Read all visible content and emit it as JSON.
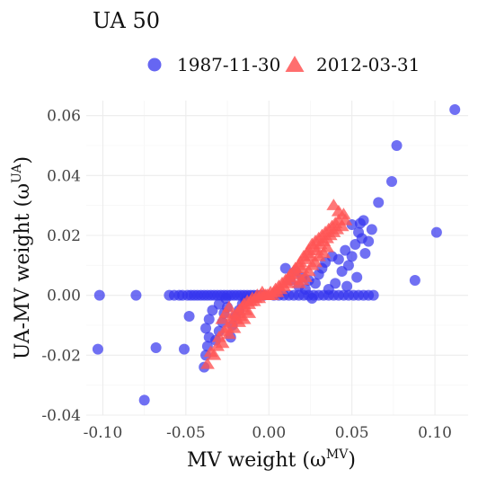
{
  "chart_data": {
    "type": "scatter",
    "title": "UA 50",
    "xlabel": "MV weight (ω",
    "xlabel_sup": "MV",
    "xlabel_close": ")",
    "ylabel": "UA-MV weight (ω",
    "ylabel_sup": "UA",
    "ylabel_close": ")",
    "xlim": [
      -0.11,
      0.12
    ],
    "ylim": [
      -0.04,
      0.065
    ],
    "x_ticks": [
      -0.1,
      -0.05,
      0.0,
      0.05,
      0.1
    ],
    "x_tick_labels": [
      "-0.10",
      "-0.05",
      "0.00",
      "0.05",
      "0.10"
    ],
    "y_ticks": [
      -0.04,
      -0.02,
      0.0,
      0.02,
      0.04,
      0.06
    ],
    "y_tick_labels": [
      "-0.04",
      "-0.02",
      "0.00",
      "0.02",
      "0.04",
      "0.06"
    ],
    "grid": true,
    "legend_position": "top",
    "series": [
      {
        "name": "1987-11-30",
        "marker": "circle",
        "color": "#3333ee",
        "points": [
          [
            -0.102,
            0.0
          ],
          [
            -0.08,
            0.0
          ],
          [
            -0.06,
            0.0
          ],
          [
            -0.057,
            0.0
          ],
          [
            -0.054,
            0.0
          ],
          [
            -0.052,
            0.0
          ],
          [
            -0.049,
            0.0
          ],
          [
            -0.047,
            0.0
          ],
          [
            -0.045,
            0.0
          ],
          [
            -0.043,
            0.0
          ],
          [
            -0.041,
            0.0
          ],
          [
            -0.039,
            0.0
          ],
          [
            -0.037,
            0.0
          ],
          [
            -0.035,
            0.0
          ],
          [
            -0.033,
            0.0
          ],
          [
            -0.031,
            0.0
          ],
          [
            -0.029,
            0.0
          ],
          [
            -0.027,
            0.0
          ],
          [
            -0.025,
            0.0
          ],
          [
            -0.023,
            0.0
          ],
          [
            -0.021,
            0.0
          ],
          [
            -0.019,
            0.0
          ],
          [
            -0.017,
            0.0
          ],
          [
            -0.015,
            0.0
          ],
          [
            -0.013,
            0.0
          ],
          [
            -0.011,
            0.0
          ],
          [
            -0.009,
            0.0
          ],
          [
            -0.007,
            0.0
          ],
          [
            -0.005,
            0.0
          ],
          [
            -0.003,
            0.0
          ],
          [
            0.003,
            0.0
          ],
          [
            0.006,
            0.0
          ],
          [
            0.009,
            0.0
          ],
          [
            0.012,
            0.0
          ],
          [
            0.015,
            0.0
          ],
          [
            0.018,
            0.0
          ],
          [
            0.021,
            0.0
          ],
          [
            0.024,
            0.0
          ],
          [
            0.027,
            0.0
          ],
          [
            0.03,
            0.0
          ],
          [
            0.033,
            0.0
          ],
          [
            0.036,
            0.0
          ],
          [
            0.039,
            0.0
          ],
          [
            0.042,
            0.0
          ],
          [
            0.045,
            0.0
          ],
          [
            0.048,
            0.0
          ],
          [
            0.051,
            0.0
          ],
          [
            0.054,
            0.0
          ],
          [
            0.057,
            0.0
          ],
          [
            0.06,
            0.0
          ],
          [
            0.063,
            0.0
          ],
          [
            -0.103,
            -0.018
          ],
          [
            -0.075,
            -0.035
          ],
          [
            -0.068,
            -0.0175
          ],
          [
            -0.051,
            -0.018
          ],
          [
            -0.048,
            -0.007
          ],
          [
            -0.039,
            -0.024
          ],
          [
            -0.038,
            -0.02
          ],
          [
            -0.037,
            -0.017
          ],
          [
            -0.036,
            -0.014
          ],
          [
            -0.038,
            -0.011
          ],
          [
            -0.036,
            -0.008
          ],
          [
            -0.034,
            -0.005
          ],
          [
            -0.032,
            -0.015
          ],
          [
            -0.03,
            -0.012
          ],
          [
            -0.028,
            -0.009
          ],
          [
            -0.027,
            -0.006
          ],
          [
            -0.025,
            -0.004
          ],
          [
            -0.023,
            -0.014
          ],
          [
            -0.022,
            -0.01
          ],
          [
            -0.02,
            -0.007
          ],
          [
            -0.018,
            -0.005
          ],
          [
            -0.016,
            -0.003
          ],
          [
            -0.014,
            -0.002
          ],
          [
            -0.03,
            -0.003
          ],
          [
            -0.026,
            -0.001
          ],
          [
            0.01,
            0.009
          ],
          [
            0.013,
            0.005
          ],
          [
            0.016,
            0.008
          ],
          [
            0.018,
            0.003
          ],
          [
            0.02,
            0.006
          ],
          [
            0.022,
            0.002
          ],
          [
            0.024,
            0.005
          ],
          [
            0.026,
            -0.001
          ],
          [
            0.028,
            0.004
          ],
          [
            0.03,
            0.007
          ],
          [
            0.032,
            0.009
          ],
          [
            0.034,
            0.011
          ],
          [
            0.036,
            0.002
          ],
          [
            0.038,
            0.013
          ],
          [
            0.04,
            0.004
          ],
          [
            0.042,
            0.012
          ],
          [
            0.044,
            0.008
          ],
          [
            0.046,
            0.015
          ],
          [
            0.047,
            0.003
          ],
          [
            0.048,
            0.01
          ],
          [
            0.05,
            0.013
          ],
          [
            0.052,
            0.017
          ],
          [
            0.053,
            0.006
          ],
          [
            0.054,
            0.021
          ],
          [
            0.055,
            0.024
          ],
          [
            0.056,
            0.019
          ],
          [
            0.058,
            0.014
          ],
          [
            0.06,
            0.018
          ],
          [
            0.062,
            0.022
          ],
          [
            0.05,
            0.0236
          ],
          [
            0.057,
            0.025
          ],
          [
            0.066,
            0.031
          ],
          [
            0.074,
            0.038
          ],
          [
            0.077,
            0.05
          ],
          [
            0.088,
            0.005
          ],
          [
            0.101,
            0.021
          ],
          [
            0.112,
            0.062
          ]
        ]
      },
      {
        "name": "2012-03-31",
        "marker": "triangle",
        "color": "#ff5555",
        "points": [
          [
            -0.037,
            -0.023
          ],
          [
            -0.035,
            -0.019
          ],
          [
            -0.033,
            -0.02
          ],
          [
            -0.031,
            -0.017
          ],
          [
            -0.03,
            -0.014
          ],
          [
            -0.028,
            -0.016
          ],
          [
            -0.027,
            -0.012
          ],
          [
            -0.025,
            -0.011
          ],
          [
            -0.024,
            -0.013
          ],
          [
            -0.023,
            -0.009
          ],
          [
            -0.022,
            -0.007
          ],
          [
            -0.02,
            -0.008
          ],
          [
            -0.019,
            -0.006
          ],
          [
            -0.018,
            -0.005
          ],
          [
            -0.017,
            -0.007
          ],
          [
            -0.016,
            -0.004
          ],
          [
            -0.015,
            -0.003
          ],
          [
            -0.014,
            -0.005
          ],
          [
            -0.013,
            -0.002
          ],
          [
            -0.012,
            -0.003
          ],
          [
            -0.011,
            -0.002
          ],
          [
            -0.01,
            -0.001
          ],
          [
            -0.009,
            -0.002
          ],
          [
            -0.008,
            -0.001
          ],
          [
            -0.007,
            0.0
          ],
          [
            -0.006,
            -0.001
          ],
          [
            -0.005,
            0.0
          ],
          [
            -0.004,
            0.001
          ],
          [
            -0.003,
            0.0
          ],
          [
            -0.002,
            0.0
          ],
          [
            -0.001,
            0.0
          ],
          [
            0.0,
            0.0
          ],
          [
            0.001,
            0.001
          ],
          [
            0.002,
            0.0
          ],
          [
            0.003,
            0.001
          ],
          [
            0.004,
            0.002
          ],
          [
            0.005,
            0.001
          ],
          [
            0.006,
            0.003
          ],
          [
            0.007,
            0.002
          ],
          [
            0.008,
            0.004
          ],
          [
            0.009,
            0.003
          ],
          [
            0.01,
            0.005
          ],
          [
            0.011,
            0.004
          ],
          [
            0.012,
            0.006
          ],
          [
            0.013,
            0.007
          ],
          [
            0.014,
            0.005
          ],
          [
            0.015,
            0.008
          ],
          [
            0.016,
            0.009
          ],
          [
            0.017,
            0.007
          ],
          [
            0.018,
            0.01
          ],
          [
            0.019,
            0.011
          ],
          [
            0.02,
            0.009
          ],
          [
            0.021,
            0.013
          ],
          [
            0.022,
            0.012
          ],
          [
            0.023,
            0.014
          ],
          [
            0.024,
            0.015
          ],
          [
            0.025,
            0.013
          ],
          [
            0.026,
            0.017
          ],
          [
            0.027,
            0.016
          ],
          [
            0.028,
            0.018
          ],
          [
            0.029,
            0.015
          ],
          [
            0.03,
            0.019
          ],
          [
            0.031,
            0.017
          ],
          [
            0.032,
            0.02
          ],
          [
            0.033,
            0.018
          ],
          [
            0.034,
            0.021
          ],
          [
            0.035,
            0.019
          ],
          [
            0.036,
            0.022
          ],
          [
            0.037,
            0.02
          ],
          [
            0.038,
            0.023
          ],
          [
            0.039,
            0.021
          ],
          [
            0.04,
            0.024
          ],
          [
            0.041,
            0.022
          ],
          [
            0.042,
            0.025
          ],
          [
            0.044,
            0.023
          ],
          [
            0.045,
            0.027
          ],
          [
            0.046,
            0.025
          ],
          [
            0.03,
            0.013
          ],
          [
            0.028,
            0.011
          ],
          [
            0.026,
            0.01
          ],
          [
            0.024,
            0.008
          ],
          [
            0.022,
            0.006
          ],
          [
            0.02,
            0.005
          ],
          [
            0.018,
            0.004
          ],
          [
            0.033,
            0.014
          ],
          [
            0.035,
            0.016
          ],
          [
            -0.024,
            -0.004
          ],
          [
            -0.026,
            -0.006
          ],
          [
            -0.028,
            -0.008
          ],
          [
            -0.021,
            -0.011
          ],
          [
            -0.018,
            -0.009
          ],
          [
            -0.015,
            -0.008
          ],
          [
            -0.012,
            -0.006
          ],
          [
            0.039,
            0.03
          ],
          [
            0.042,
            0.028
          ]
        ]
      }
    ]
  }
}
